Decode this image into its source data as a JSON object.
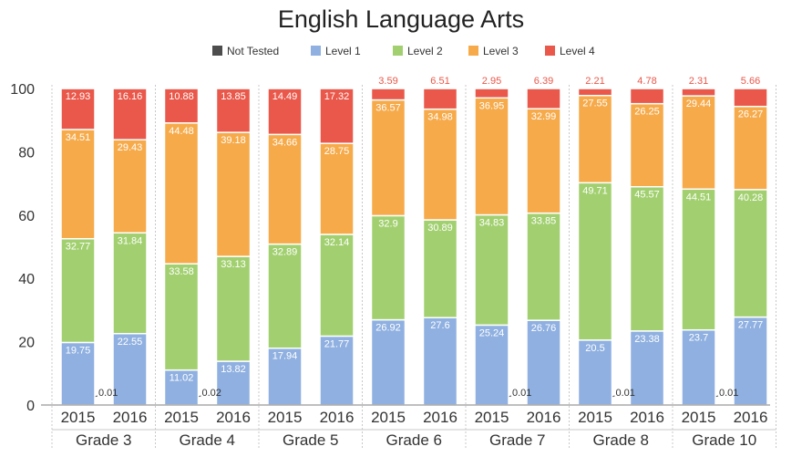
{
  "chart_data": {
    "type": "bar",
    "stacked": true,
    "title": "English Language Arts",
    "xlabel": "",
    "ylabel": "",
    "ylim": [
      0,
      100
    ],
    "yticks": [
      0,
      20,
      40,
      60,
      80,
      100
    ],
    "grid": false,
    "legend_position": "top",
    "groups": [
      "Grade 3",
      "Grade 4",
      "Grade 5",
      "Grade 6",
      "Grade 7",
      "Grade 8",
      "Grade 10"
    ],
    "categories": [
      "2015",
      "2016",
      "2015",
      "2016",
      "2015",
      "2016",
      "2015",
      "2016",
      "2015",
      "2016",
      "2015",
      "2016",
      "2015",
      "2016"
    ],
    "series": [
      {
        "name": "Not Tested",
        "color": "#4d4d4d",
        "values": [
          0.01,
          0,
          0.02,
          0,
          0,
          0,
          0,
          0,
          0.01,
          0,
          0.01,
          0,
          0.01,
          0
        ],
        "labels": [
          "0.01",
          "",
          "0.02",
          "",
          "",
          "",
          "",
          "",
          "0.01",
          "",
          "0.01",
          "",
          "0.01",
          ""
        ]
      },
      {
        "name": "Level 1",
        "color": "#8fb0e0",
        "values": [
          19.75,
          22.55,
          11.02,
          13.82,
          17.94,
          21.77,
          26.92,
          27.6,
          25.24,
          26.76,
          20.5,
          23.38,
          23.7,
          27.77
        ],
        "labels": [
          "19.75",
          "22.55",
          "11.02",
          "13.82",
          "17.94",
          "21.77",
          "26.92",
          "27.6",
          "25.24",
          "26.76",
          "20.5",
          "23.38",
          "23.7",
          "27.77"
        ]
      },
      {
        "name": "Level 2",
        "color": "#a2d070",
        "values": [
          32.77,
          31.84,
          33.58,
          33.13,
          32.89,
          32.14,
          32.9,
          30.89,
          34.83,
          33.85,
          49.71,
          45.57,
          44.51,
          40.28
        ],
        "labels": [
          "32.77",
          "31.84",
          "33.58",
          "33.13",
          "32.89",
          "32.14",
          "32.9",
          "30.89",
          "34.83",
          "33.85",
          "49.71",
          "45.57",
          "44.51",
          "40.28"
        ]
      },
      {
        "name": "Level 3",
        "color": "#f6aa4a",
        "values": [
          34.51,
          29.43,
          44.48,
          39.18,
          34.66,
          28.75,
          36.57,
          34.98,
          36.95,
          32.99,
          27.55,
          26.25,
          29.44,
          26.27
        ],
        "labels": [
          "34.51",
          "29.43",
          "44.48",
          "39.18",
          "34.66",
          "28.75",
          "36.57",
          "34.98",
          "36.95",
          "32.99",
          "27.55",
          "26.25",
          "29.44",
          "26.27"
        ]
      },
      {
        "name": "Level 4",
        "color": "#e9584a",
        "values": [
          12.93,
          16.16,
          10.88,
          13.85,
          14.49,
          17.32,
          3.59,
          6.51,
          2.95,
          6.39,
          2.21,
          4.78,
          2.31,
          5.66
        ],
        "labels": [
          "12.93",
          "16.16",
          "10.88",
          "13.85",
          "14.49",
          "17.32",
          "3.59",
          "6.51",
          "2.95",
          "6.39",
          "2.21",
          "4.78",
          "2.31",
          "5.66"
        ]
      }
    ]
  }
}
